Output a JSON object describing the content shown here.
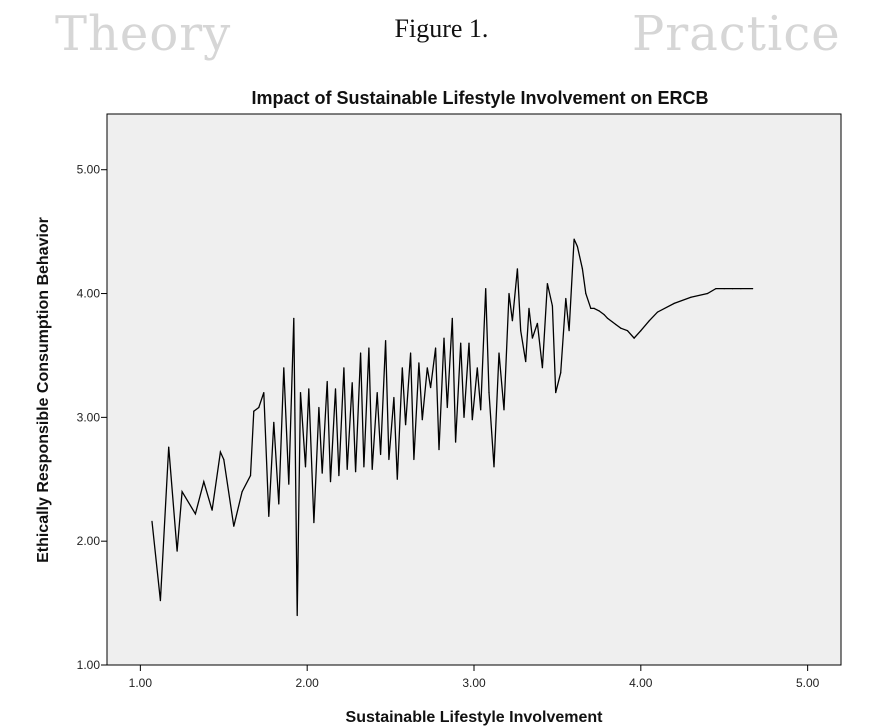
{
  "page": {
    "watermark_left": "Theory",
    "watermark_right": "Practice",
    "figure_label": "Figure 1."
  },
  "chart_data": {
    "type": "line",
    "title": "Impact of Sustainable Lifestyle Involvement on ERCB",
    "xlabel": "Sustainable Lifestyle Involvement",
    "ylabel": "Ethically Responsible Consumption Behavior",
    "xlim": [
      0.8,
      5.2
    ],
    "ylim": [
      1.0,
      5.45
    ],
    "x_ticks": [
      "1.00",
      "2.00",
      "3.00",
      "4.00",
      "5.00"
    ],
    "y_ticks": [
      "1.00",
      "2.00",
      "3.00",
      "4.00",
      "5.00"
    ],
    "grid": false,
    "legend": "none",
    "background": "#efefef",
    "line_color": "#000000",
    "series": [
      {
        "x": [
          1.07,
          1.12,
          1.17,
          1.22,
          1.25,
          1.33,
          1.38,
          1.43,
          1.48,
          1.5,
          1.56,
          1.61,
          1.66,
          1.68,
          1.71,
          1.74,
          1.77,
          1.8,
          1.83,
          1.86,
          1.89,
          1.92,
          1.94,
          1.96,
          1.99,
          2.01,
          2.04,
          2.07,
          2.09,
          2.12,
          2.14,
          2.17,
          2.19,
          2.22,
          2.24,
          2.27,
          2.29,
          2.32,
          2.34,
          2.37,
          2.39,
          2.42,
          2.44,
          2.47,
          2.49,
          2.52,
          2.54,
          2.57,
          2.59,
          2.62,
          2.64,
          2.67,
          2.69,
          2.72,
          2.74,
          2.77,
          2.79,
          2.82,
          2.84,
          2.87,
          2.89,
          2.92,
          2.94,
          2.97,
          2.99,
          3.02,
          3.04,
          3.07,
          3.09,
          3.12,
          3.15,
          3.18,
          3.21,
          3.23,
          3.26,
          3.28,
          3.31,
          3.33,
          3.35,
          3.38,
          3.41,
          3.44,
          3.47,
          3.49,
          3.52,
          3.55,
          3.57,
          3.6,
          3.62,
          3.65,
          3.67,
          3.7,
          3.72,
          3.75,
          3.78,
          3.8,
          3.83,
          3.85,
          3.88,
          3.92,
          3.96,
          4.0,
          4.05,
          4.1,
          4.2,
          4.3,
          4.4,
          4.45,
          4.5,
          4.55,
          4.6,
          4.67
        ],
        "y": [
          2.16,
          1.52,
          2.76,
          1.92,
          2.4,
          2.22,
          2.48,
          2.25,
          2.72,
          2.66,
          2.12,
          2.4,
          2.53,
          3.05,
          3.08,
          3.2,
          2.2,
          2.96,
          2.3,
          3.4,
          2.46,
          3.8,
          1.4,
          3.2,
          2.6,
          3.23,
          2.15,
          3.08,
          2.55,
          3.29,
          2.48,
          3.23,
          2.53,
          3.4,
          2.58,
          3.28,
          2.56,
          3.52,
          2.6,
          3.56,
          2.58,
          3.2,
          2.7,
          3.62,
          2.66,
          3.16,
          2.5,
          3.4,
          2.94,
          3.52,
          2.66,
          3.44,
          2.98,
          3.4,
          3.24,
          3.56,
          2.74,
          3.64,
          3.08,
          3.8,
          2.8,
          3.6,
          3.0,
          3.6,
          2.98,
          3.4,
          3.06,
          4.04,
          3.2,
          2.6,
          3.52,
          3.06,
          4.0,
          3.78,
          4.2,
          3.7,
          3.45,
          3.88,
          3.64,
          3.76,
          3.4,
          4.08,
          3.9,
          3.2,
          3.36,
          3.96,
          3.7,
          4.44,
          4.38,
          4.2,
          4.0,
          3.88,
          3.88,
          3.86,
          3.83,
          3.8,
          3.77,
          3.75,
          3.72,
          3.7,
          3.64,
          3.7,
          3.78,
          3.85,
          3.92,
          3.97,
          4.0,
          4.04,
          4.04,
          4.04,
          4.04,
          4.04
        ]
      }
    ]
  }
}
